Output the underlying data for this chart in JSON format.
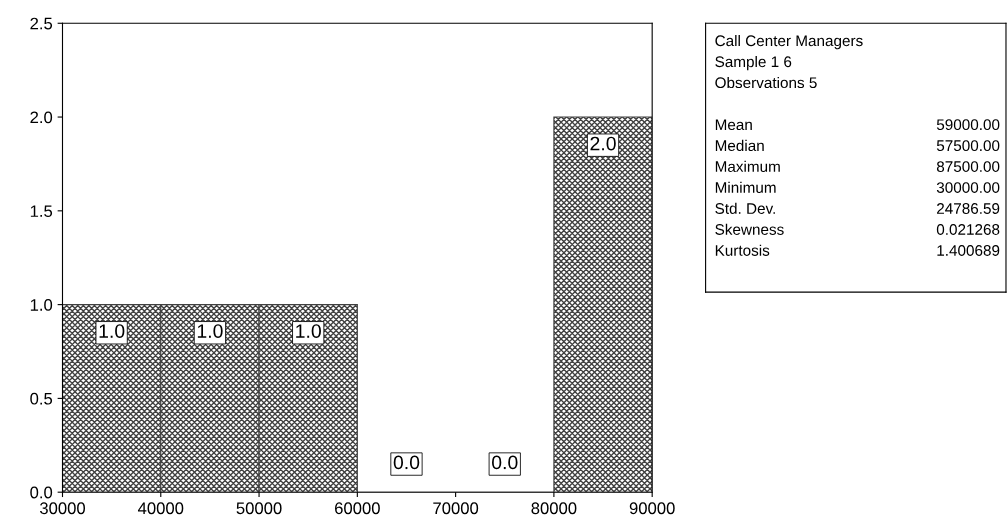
{
  "chart_data": [
    {
      "type": "histogram",
      "bins": [
        30000,
        40000,
        50000,
        60000,
        70000,
        80000,
        90000
      ],
      "values": [
        1,
        1,
        1,
        0,
        0,
        2
      ],
      "value_labels": [
        "1.0",
        "1.0",
        "1.0",
        "0.0",
        "0.0",
        "2.0"
      ],
      "color": "#404040",
      "xlim": [
        30000,
        90000
      ],
      "xticks": [
        30000,
        40000,
        50000,
        60000,
        70000,
        80000,
        90000
      ],
      "ylim": [
        0,
        2.5
      ],
      "grid": false,
      "yticks": [
        {
          "value": 0,
          "label": "0.0"
        },
        {
          "value": 0.5,
          "label": "0.5"
        },
        {
          "value": 1,
          "label": "1.0"
        },
        {
          "value": 1.5,
          "label": "1.5"
        },
        {
          "value": 2,
          "label": "2.0"
        },
        {
          "value": 2.5,
          "label": "2.5"
        }
      ]
    },
    {
      "type": "other",
      "title": "Call Center Managers",
      "annotations": [
        "Sample 1 6",
        "Observations 5",
        "Mean",
        "59000.00",
        "Median",
        "57500.00",
        "Maximum",
        "87500.00",
        "Minimum",
        "30000.00",
        "Std. Dev.",
        "24786.59",
        "Skewness",
        "0.021268",
        "Kurtosis",
        "1.400689"
      ]
    }
  ]
}
